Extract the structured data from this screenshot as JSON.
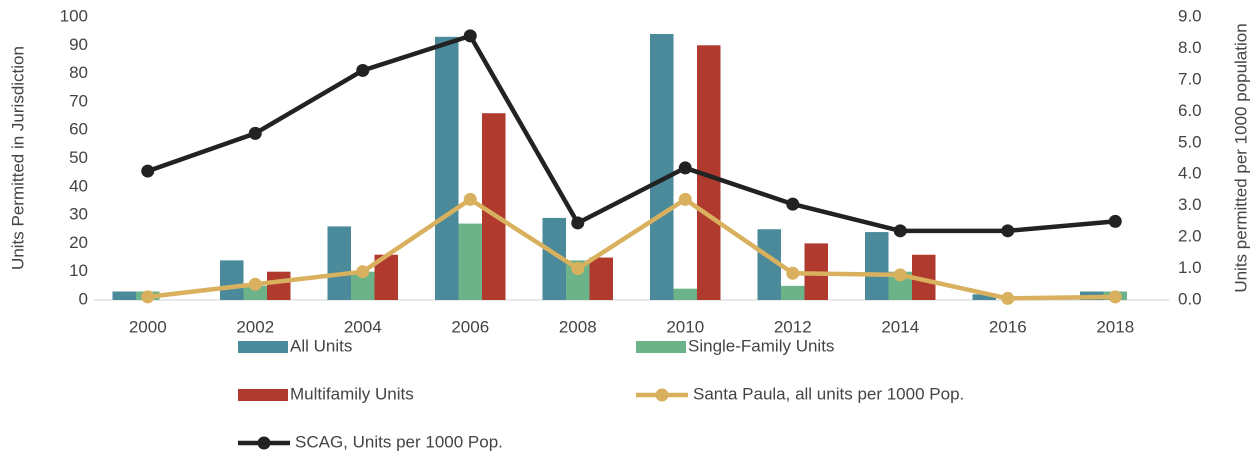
{
  "chart_data": {
    "type": "bar_line",
    "categories": [
      "2000",
      "2002",
      "2004",
      "2006",
      "2008",
      "2010",
      "2012",
      "2014",
      "2016",
      "2018"
    ],
    "y_label": "Units Permitted in Jurisdiction",
    "y2_label": "Units permitted per 1000 population",
    "ylim": [
      0,
      100
    ],
    "yticks": [
      0,
      10,
      20,
      30,
      40,
      50,
      60,
      70,
      80,
      90,
      100
    ],
    "y2lim": [
      0,
      9
    ],
    "y2ticks": [
      {
        "value": 0,
        "label": "0.0"
      },
      {
        "value": 1,
        "label": "1.0"
      },
      {
        "value": 2,
        "label": "2.0"
      },
      {
        "value": 3,
        "label": "3.0"
      },
      {
        "value": 4,
        "label": "4.0"
      },
      {
        "value": 5,
        "label": "5.0"
      },
      {
        "value": 6,
        "label": "6.0"
      },
      {
        "value": 7,
        "label": "7.0"
      },
      {
        "value": 8,
        "label": "8.0"
      },
      {
        "value": 9,
        "label": "9.0"
      }
    ],
    "series": [
      {
        "name": "All Units",
        "type": "bar",
        "color": "#4a8a9a",
        "values": [
          3,
          14,
          26,
          93,
          29,
          94,
          25,
          24,
          2,
          3
        ]
      },
      {
        "name": "Single-Family Units",
        "type": "bar",
        "color": "#6db38a",
        "values": [
          3,
          5,
          10,
          27,
          14,
          4,
          5,
          10,
          0,
          3
        ]
      },
      {
        "name": "Multifamily Units",
        "type": "bar",
        "color": "#b03a2e",
        "values": [
          0,
          10,
          16,
          66,
          15,
          90,
          20,
          16,
          0,
          0
        ]
      },
      {
        "name": "Santa Paula, all units per 1000 Pop.",
        "type": "line",
        "axis": "y2",
        "color": "#d9b15e",
        "values": [
          0.1,
          0.5,
          0.9,
          3.2,
          1.0,
          3.2,
          0.85,
          0.8,
          0.05,
          0.1
        ]
      },
      {
        "name": "SCAG, Units per 1000 Pop.",
        "type": "line",
        "axis": "y2",
        "color": "#222222",
        "values": [
          4.1,
          5.3,
          7.3,
          8.4,
          2.45,
          4.2,
          3.05,
          2.2,
          2.2,
          2.5
        ]
      }
    ]
  }
}
